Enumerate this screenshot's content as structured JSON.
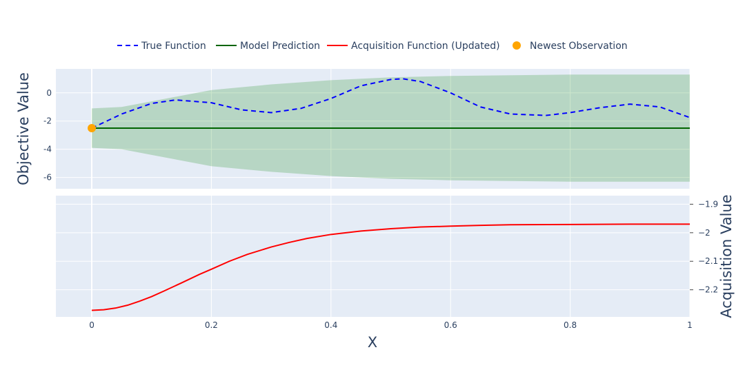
{
  "colors": {
    "plot_bg": "#e5ecf6",
    "grid": "#ffffff",
    "true_function": "#0000ff",
    "model_prediction": "#006400",
    "acquisition": "#ff0000",
    "observation": "#ffa500",
    "band_fill": "rgba(0,128,0,0.2)",
    "text": "#2a3f5f"
  },
  "chart_data": [
    {
      "type": "line",
      "panel": "top",
      "ylabel": "Objective Value",
      "x_range": [
        -0.06,
        1.0
      ],
      "y_range": [
        -6.8,
        1.7
      ],
      "y_ticks": [
        0,
        -2,
        -4,
        -6
      ],
      "series": [
        {
          "name": "True Function",
          "style": "dashed",
          "x": [
            0.0,
            0.05,
            0.1,
            0.14,
            0.2,
            0.25,
            0.3,
            0.35,
            0.4,
            0.45,
            0.5,
            0.52,
            0.55,
            0.6,
            0.65,
            0.7,
            0.76,
            0.8,
            0.85,
            0.9,
            0.95,
            1.0
          ],
          "y": [
            -2.5,
            -1.5,
            -0.75,
            -0.5,
            -0.7,
            -1.2,
            -1.4,
            -1.1,
            -0.4,
            0.5,
            0.95,
            1.0,
            0.8,
            0.0,
            -1.0,
            -1.5,
            -1.6,
            -1.4,
            -1.05,
            -0.8,
            -1.0,
            -1.75
          ]
        },
        {
          "name": "Model Prediction",
          "style": "solid",
          "x": [
            0.0,
            1.0
          ],
          "y": [
            -2.5,
            -2.5
          ]
        },
        {
          "name": "Uncertainty band",
          "type": "area",
          "x": [
            0.0,
            0.05,
            0.1,
            0.2,
            0.3,
            0.4,
            0.5,
            0.6,
            0.7,
            0.8,
            0.9,
            1.0
          ],
          "upper": [
            -1.1,
            -1.0,
            -0.6,
            0.2,
            0.6,
            0.9,
            1.1,
            1.2,
            1.25,
            1.3,
            1.3,
            1.3
          ],
          "lower": [
            -3.9,
            -4.0,
            -4.4,
            -5.2,
            -5.6,
            -5.9,
            -6.1,
            -6.2,
            -6.25,
            -6.3,
            -6.3,
            -6.3
          ]
        },
        {
          "name": "Newest Observation",
          "type": "scatter",
          "x": [
            0.0
          ],
          "y": [
            -2.5
          ]
        }
      ]
    },
    {
      "type": "line",
      "panel": "bottom",
      "xlabel": "X",
      "ylabel": "Acquisition Value",
      "x_range": [
        -0.06,
        1.0
      ],
      "y_range": [
        -2.295,
        -1.87
      ],
      "x_ticks": [
        0,
        0.2,
        0.4,
        0.6,
        0.8,
        1
      ],
      "y_ticks": [
        -1.9,
        -2,
        -2.1,
        -2.2
      ],
      "series": [
        {
          "name": "Acquisition Function (Updated)",
          "x": [
            0.0,
            0.02,
            0.04,
            0.06,
            0.08,
            0.1,
            0.12,
            0.15,
            0.18,
            0.2,
            0.23,
            0.26,
            0.3,
            0.33,
            0.36,
            0.4,
            0.45,
            0.5,
            0.55,
            0.6,
            0.65,
            0.7,
            0.8,
            0.9,
            1.0
          ],
          "y": [
            -2.272,
            -2.27,
            -2.264,
            -2.254,
            -2.24,
            -2.224,
            -2.205,
            -2.176,
            -2.146,
            -2.128,
            -2.1,
            -2.076,
            -2.05,
            -2.034,
            -2.02,
            -2.006,
            -1.994,
            -1.986,
            -1.98,
            -1.977,
            -1.974,
            -1.972,
            -1.971,
            -1.97,
            -1.97
          ]
        }
      ]
    }
  ],
  "legend": [
    {
      "label": "True Function",
      "kind": "dash",
      "color": "#0000ff"
    },
    {
      "label": "Model Prediction",
      "kind": "line",
      "color": "#006400"
    },
    {
      "label": "Acquisition Function (Updated)",
      "kind": "line",
      "color": "#ff0000"
    },
    {
      "label": "Newest Observation",
      "kind": "dot",
      "color": "#ffa500"
    }
  ]
}
